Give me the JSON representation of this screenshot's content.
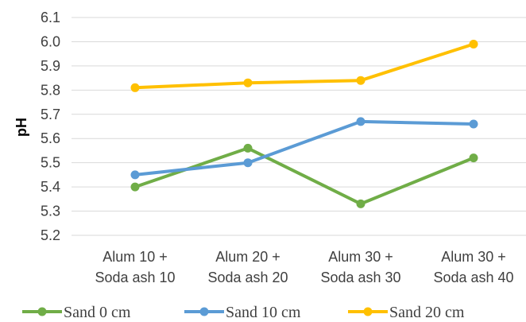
{
  "chart_data": {
    "type": "line",
    "title": "",
    "xlabel": "",
    "ylabel": "pH",
    "ylim": [
      5.2,
      6.1
    ],
    "yticks": [
      "5.2",
      "5.3",
      "5.4",
      "5.5",
      "5.6",
      "5.7",
      "5.8",
      "5.9",
      "6.0",
      "6.1"
    ],
    "categories": [
      [
        "Alum 10 +",
        "Soda ash 10"
      ],
      [
        "Alum 20 +",
        "Soda ash 20"
      ],
      [
        "Alum 30 +",
        "Soda ash 30"
      ],
      [
        "Alum 30 +",
        "Soda ash 40"
      ]
    ],
    "grid": true,
    "legend_position": "bottom",
    "series": [
      {
        "name": "Sand 0 cm",
        "color": "#70ad47",
        "values": [
          5.4,
          5.56,
          5.33,
          5.52
        ]
      },
      {
        "name": "Sand 10 cm",
        "color": "#5b9bd5",
        "values": [
          5.45,
          5.5,
          5.67,
          5.66
        ]
      },
      {
        "name": "Sand 20 cm",
        "color": "#ffc000",
        "values": [
          5.81,
          5.83,
          5.84,
          5.99
        ]
      }
    ]
  }
}
